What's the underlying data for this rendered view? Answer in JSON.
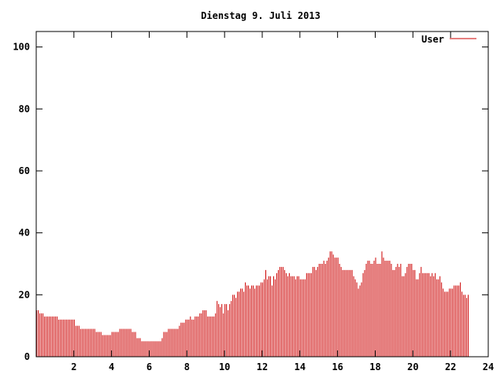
{
  "chart_data": {
    "type": "bar",
    "title": "Dienstag 9. Juli 2013",
    "xlabel": "",
    "ylabel": "",
    "xlim": [
      0,
      24
    ],
    "ylim": [
      0,
      105
    ],
    "x_ticks": [
      2,
      4,
      6,
      8,
      10,
      12,
      14,
      16,
      18,
      20,
      22,
      24
    ],
    "x_tick_labels": [
      "2",
      "4",
      "6",
      "8",
      "10",
      "12",
      "14",
      "16",
      "18",
      "20",
      "22",
      "24"
    ],
    "y_ticks": [
      0,
      20,
      40,
      60,
      80,
      100
    ],
    "y_tick_labels": [
      "0",
      "20",
      "40",
      "60",
      "80",
      "100"
    ],
    "legend_position": "top-right",
    "series": [
      {
        "name": "User",
        "color": "#cc0000",
        "x_step_minutes": 5,
        "values": [
          15,
          15,
          14,
          14,
          14,
          13,
          13,
          13,
          13,
          13,
          13,
          13,
          13,
          13,
          12,
          12,
          12,
          12,
          12,
          12,
          12,
          12,
          12,
          12,
          12,
          10,
          10,
          10,
          9,
          9,
          9,
          9,
          9,
          9,
          9,
          9,
          9,
          9,
          8,
          8,
          8,
          8,
          7,
          7,
          7,
          7,
          7,
          7,
          8,
          8,
          8,
          8,
          8,
          9,
          9,
          9,
          9,
          9,
          9,
          9,
          9,
          8,
          8,
          8,
          6,
          6,
          6,
          5,
          5,
          5,
          5,
          5,
          5,
          5,
          5,
          5,
          5,
          5,
          5,
          5,
          6,
          8,
          8,
          8,
          9,
          9,
          9,
          9,
          9,
          9,
          9,
          10,
          11,
          11,
          11,
          12,
          12,
          12,
          13,
          12,
          12,
          13,
          13,
          13,
          14,
          14,
          15,
          15,
          15,
          13,
          13,
          13,
          13,
          13,
          14,
          18,
          17,
          16,
          17,
          14,
          17,
          17,
          15,
          17,
          18,
          20,
          20,
          19,
          21,
          21,
          22,
          22,
          21,
          24,
          23,
          23,
          22,
          23,
          23,
          22,
          23,
          23,
          23,
          24,
          24,
          25,
          28,
          25,
          26,
          26,
          23,
          26,
          25,
          27,
          28,
          29,
          29,
          29,
          28,
          27,
          26,
          27,
          26,
          26,
          26,
          25,
          26,
          26,
          25,
          25,
          25,
          25,
          27,
          27,
          27,
          27,
          29,
          29,
          28,
          29,
          30,
          30,
          30,
          31,
          30,
          31,
          32,
          34,
          34,
          33,
          32,
          32,
          32,
          30,
          29,
          28,
          28,
          28,
          28,
          28,
          28,
          28,
          26,
          25,
          24,
          22,
          23,
          24,
          27,
          28,
          30,
          31,
          31,
          30,
          30,
          31,
          32,
          30,
          30,
          30,
          34,
          32,
          31,
          31,
          31,
          31,
          30,
          28,
          28,
          29,
          30,
          29,
          30,
          26,
          26,
          27,
          29,
          30,
          30,
          30,
          28,
          28,
          25,
          25,
          27,
          29,
          27,
          27,
          27,
          27,
          27,
          26,
          27,
          26,
          27,
          25,
          25,
          26,
          24,
          22,
          21,
          21,
          21,
          22,
          22,
          22,
          23,
          23,
          23,
          23,
          24,
          21,
          20,
          20,
          19,
          20
        ]
      }
    ]
  }
}
